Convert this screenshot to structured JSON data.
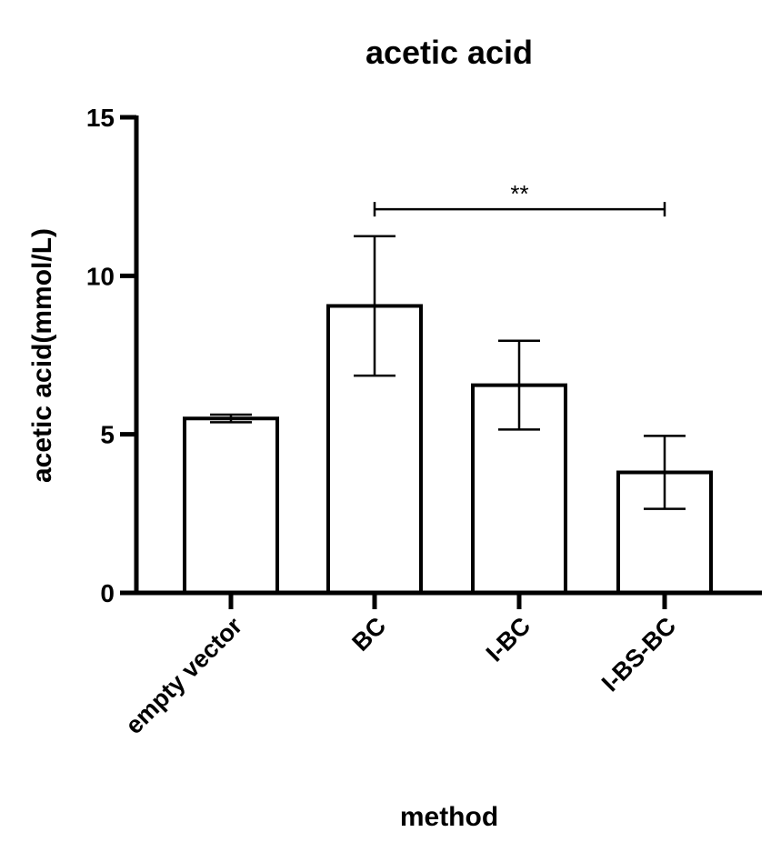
{
  "chart_data": {
    "type": "bar",
    "title": "acetic acid",
    "xlabel": "method",
    "ylabel": "acetic acid(mmol/L)",
    "categories": [
      "empty vector",
      "BC",
      "I-BC",
      "I-BS-BC"
    ],
    "values": [
      5.5,
      9.05,
      6.55,
      3.8
    ],
    "errors": [
      0.12,
      2.2,
      1.4,
      1.15
    ],
    "ylim": [
      0,
      15
    ],
    "yticks": [
      0,
      5,
      10,
      15
    ],
    "ytick_labels": [
      "0",
      "5",
      "10",
      "15"
    ],
    "bar_fill": "#ffffff",
    "bar_stroke": "#000000",
    "grid": false,
    "significance": [
      {
        "from": 1,
        "to": 3,
        "label": "**",
        "y": 12.1
      }
    ]
  }
}
